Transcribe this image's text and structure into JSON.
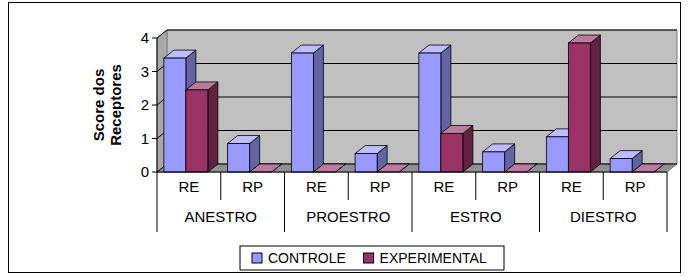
{
  "chart_data": {
    "type": "bar",
    "y_label": "Score dos Receptores",
    "categories": [
      "RE",
      "RP",
      "RE",
      "RP",
      "RE",
      "RP",
      "RE",
      "RP"
    ],
    "category_groups": [
      "ANESTRO",
      "PROESTRO",
      "ESTRO",
      "DIESTRO"
    ],
    "series": [
      {
        "name": "CONTROLE",
        "color": "#9999ff",
        "values": [
          3.4,
          0.85,
          3.55,
          0.55,
          3.55,
          0.6,
          1.05,
          0.4
        ]
      },
      {
        "name": "EXPERIMENTAL",
        "color": "#993366",
        "values": [
          2.45,
          0,
          0,
          0,
          1.15,
          0,
          3.85,
          0
        ]
      }
    ],
    "ylim": [
      0,
      4
    ],
    "yticks": [
      0,
      1,
      2,
      3,
      4
    ],
    "grid": true,
    "legend": "bottom"
  }
}
